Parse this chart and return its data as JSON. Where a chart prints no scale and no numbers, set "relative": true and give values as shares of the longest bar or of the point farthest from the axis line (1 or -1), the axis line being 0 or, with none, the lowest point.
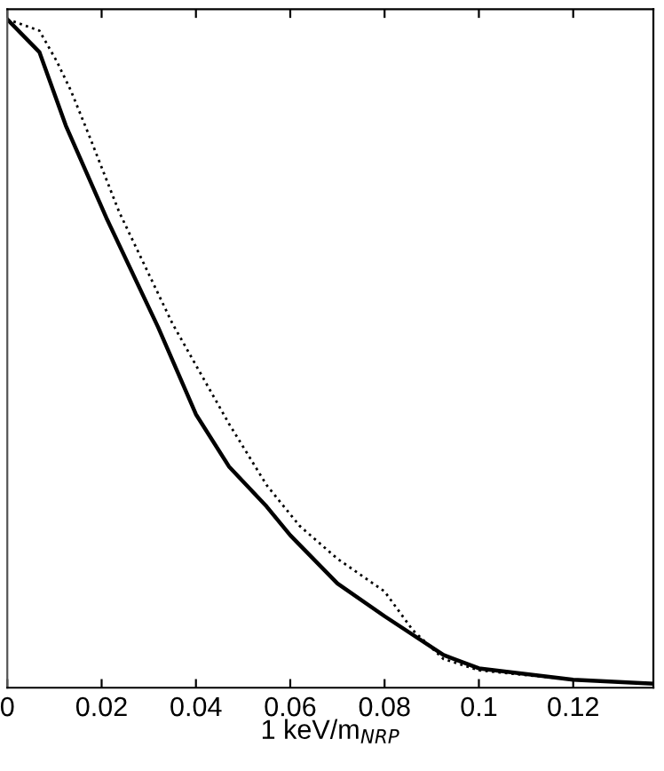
{
  "chart_data": {
    "type": "line",
    "xlabel": "1 keV/m$_{NRP}$",
    "relative": true,
    "xlim": [
      0,
      0.137
    ],
    "xticks": [
      0,
      0.02,
      0.04,
      0.06,
      0.08,
      0.1,
      0.12
    ],
    "tick_labels": "x",
    "grid": false,
    "legend": false,
    "marker": "none",
    "series": [
      {
        "color": "#000000",
        "line_style": "solid",
        "x": [
          0,
          0.0068,
          0.0124,
          0.021,
          0.032,
          0.04,
          0.047,
          0.055,
          0.06,
          0.07,
          0.08,
          0.0925,
          0.1,
          0.12,
          0.137
        ],
        "values": [
          1.0,
          0.951,
          0.841,
          0.703,
          0.539,
          0.409,
          0.331,
          0.271,
          0.228,
          0.156,
          0.107,
          0.049,
          0.029,
          0.012,
          0.006
        ]
      },
      {
        "color": "#000000",
        "line_style": "dotted",
        "x": [
          0,
          0.0068,
          0.0105,
          0.0135,
          0.0173,
          0.0237,
          0.035,
          0.047,
          0.055,
          0.062,
          0.07,
          0.08,
          0.086,
          0.0925,
          0.1,
          0.12,
          0.137
        ],
        "values": [
          1.0,
          0.983,
          0.937,
          0.893,
          0.827,
          0.712,
          0.545,
          0.395,
          0.303,
          0.242,
          0.193,
          0.144,
          0.086,
          0.043,
          0.026,
          0.012,
          0.006
        ]
      }
    ]
  }
}
